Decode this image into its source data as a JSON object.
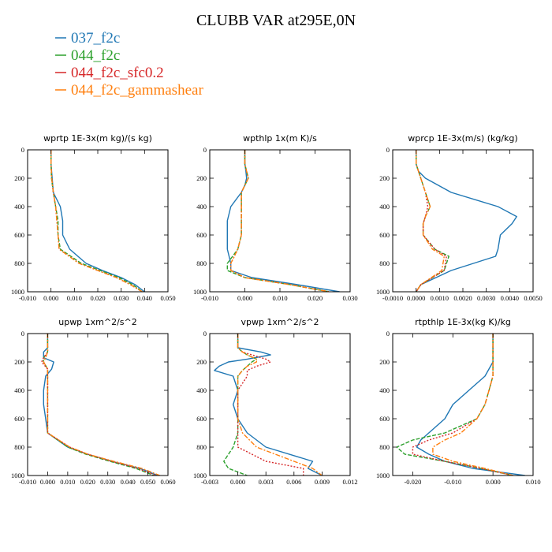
{
  "figure": {
    "title": "CLUBB VAR at295E,0N"
  },
  "legend": [
    {
      "name": "037_f2c",
      "color": "#1f77b4"
    },
    {
      "name": "044_f2c",
      "color": "#2ca02c"
    },
    {
      "name": "044_f2c_sfc0.2",
      "color": "#d62728"
    },
    {
      "name": "044_f2c_gammashear",
      "color": "#ff7f0e"
    }
  ],
  "chart_data": [
    {
      "type": "line",
      "title": "wprtp  1E-3x(m kg)/(s kg)",
      "xlim": [
        -0.01,
        0.05
      ],
      "xticks": [
        "-0.010",
        "0.000",
        "0.010",
        "0.020",
        "0.030",
        "0.040",
        "0.050"
      ],
      "xtick_values": [
        -0.01,
        0,
        0.01,
        0.02,
        0.03,
        0.04,
        0.05
      ],
      "ylim": [
        1000,
        0
      ],
      "yticks": [
        "0",
        "200",
        "400",
        "600",
        "800",
        "1000"
      ],
      "ytick_values": [
        0,
        200,
        400,
        600,
        800,
        1000
      ],
      "y": [
        0,
        100,
        200,
        300,
        400,
        500,
        600,
        700,
        800,
        850,
        900,
        950,
        1000
      ],
      "series": [
        {
          "name": "037_f2c",
          "values": [
            0,
            0,
            0.0005,
            0.001,
            0.004,
            0.005,
            0.005,
            0.008,
            0.015,
            0.022,
            0.03,
            0.036,
            0.04
          ]
        },
        {
          "name": "044_f2c",
          "values": [
            0,
            0,
            0.0002,
            0.001,
            0.002,
            0.003,
            0.003,
            0.004,
            0.013,
            0.021,
            0.029,
            0.035,
            0.039
          ]
        },
        {
          "name": "044_f2c_sfc0.2",
          "values": [
            0,
            0,
            0.0003,
            0.001,
            0.002,
            0.0025,
            0.003,
            0.0035,
            0.012,
            0.02,
            0.028,
            0.034,
            0.039
          ]
        },
        {
          "name": "044_f2c_gammashear",
          "values": [
            0,
            0,
            0.0003,
            0.001,
            0.002,
            0.0025,
            0.003,
            0.0035,
            0.012,
            0.02,
            0.028,
            0.034,
            0.039
          ]
        }
      ]
    },
    {
      "type": "line",
      "title": "wpthlp  1x(m K)/s",
      "xlim": [
        -0.01,
        0.03
      ],
      "xticks": [
        "-0.010",
        "0.000",
        "0.010",
        "0.020",
        "0.030"
      ],
      "xtick_values": [
        -0.01,
        0,
        0.01,
        0.02,
        0.03
      ],
      "ylim": [
        1000,
        0
      ],
      "yticks": [
        "0",
        "200",
        "400",
        "600",
        "800",
        "1000"
      ],
      "ytick_values": [
        0,
        200,
        400,
        600,
        800,
        1000
      ],
      "y": [
        0,
        100,
        150,
        200,
        250,
        300,
        400,
        500,
        600,
        700,
        800,
        850,
        900,
        950,
        1000
      ],
      "series": [
        {
          "name": "037_f2c",
          "values": [
            0,
            0,
            0.0003,
            0.0005,
            0,
            -0.001,
            -0.004,
            -0.005,
            -0.005,
            -0.005,
            -0.004,
            -0.004,
            0.002,
            0.015,
            0.027
          ]
        },
        {
          "name": "044_f2c",
          "values": [
            0,
            0,
            0.0005,
            0.001,
            0,
            -0.001,
            -0.001,
            -0.001,
            -0.001,
            -0.002,
            -0.005,
            -0.005,
            0,
            0.013,
            0.024
          ]
        },
        {
          "name": "044_f2c_sfc0.2",
          "values": [
            0,
            0,
            0.0005,
            0.001,
            0,
            -0.001,
            -0.001,
            -0.001,
            -0.001,
            -0.002,
            -0.004,
            -0.004,
            0,
            0.013,
            0.024
          ]
        },
        {
          "name": "044_f2c_gammashear",
          "values": [
            0,
            0,
            0.0005,
            0.001,
            0,
            -0.001,
            -0.001,
            -0.001,
            -0.001,
            -0.002,
            -0.004,
            -0.004,
            0,
            0.013,
            0.024
          ]
        }
      ]
    },
    {
      "type": "line",
      "title": "wprcp  1E-3x(m/s) (kg/kg)",
      "xlim": [
        -0.001,
        0.005
      ],
      "xticks": [
        "-0.0010",
        "0.0000",
        "0.0010",
        "0.0020",
        "0.0030",
        "0.0040",
        "0.0050"
      ],
      "xtick_values": [
        -0.001,
        0,
        0.001,
        0.002,
        0.003,
        0.004,
        0.005
      ],
      "ylim": [
        1000,
        0
      ],
      "yticks": [
        "0",
        "200",
        "400",
        "600",
        "800",
        "1000"
      ],
      "ytick_values": [
        0,
        200,
        400,
        600,
        800,
        1000
      ],
      "y": [
        0,
        100,
        150,
        200,
        300,
        400,
        470,
        520,
        600,
        700,
        750,
        850,
        950,
        1000
      ],
      "series": [
        {
          "name": "037_f2c",
          "values": [
            0,
            0,
            0.0001,
            0.0004,
            0.0015,
            0.0035,
            0.0043,
            0.0041,
            0.0036,
            0.0035,
            0.0034,
            0.0015,
            0.0002,
            0
          ]
        },
        {
          "name": "044_f2c",
          "values": [
            0,
            0,
            0.0001,
            0.0002,
            0.0004,
            0.0006,
            0.0004,
            0.0003,
            0.0003,
            0.0008,
            0.0014,
            0.0012,
            0.0002,
            0
          ]
        },
        {
          "name": "044_f2c_sfc0.2",
          "values": [
            0,
            0,
            0.0001,
            0.0002,
            0.0004,
            0.0005,
            0.0004,
            0.0003,
            0.0003,
            0.0008,
            0.0013,
            0.0012,
            0.0002,
            0
          ]
        },
        {
          "name": "044_f2c_gammashear",
          "values": [
            0,
            0,
            0.0001,
            0.0002,
            0.0004,
            0.0006,
            0.0004,
            0.0003,
            0.0003,
            0.0007,
            0.0012,
            0.0011,
            0.0002,
            0
          ]
        }
      ]
    },
    {
      "type": "line",
      "title": "upwp  1xm^2/s^2",
      "xlim": [
        -0.01,
        0.06
      ],
      "xticks": [
        "-0.010",
        "0.000",
        "0.010",
        "0.020",
        "0.030",
        "0.040",
        "0.050",
        "0.060"
      ],
      "xtick_values": [
        -0.01,
        0,
        0.01,
        0.02,
        0.03,
        0.04,
        0.05,
        0.06
      ],
      "ylim": [
        1000,
        0
      ],
      "yticks": [
        "0",
        "200",
        "400",
        "600",
        "800",
        "1000"
      ],
      "ytick_values": [
        0,
        200,
        400,
        600,
        800,
        1000
      ],
      "y": [
        0,
        100,
        130,
        170,
        200,
        250,
        300,
        400,
        500,
        600,
        700,
        800,
        850,
        900,
        950,
        1000
      ],
      "series": [
        {
          "name": "037_f2c",
          "values": [
            0,
            0,
            -0.002,
            -0.002,
            0.003,
            0.002,
            -0.001,
            -0.002,
            -0.002,
            -0.001,
            0,
            0.01,
            0.02,
            0.032,
            0.046,
            0.055
          ]
        },
        {
          "name": "044_f2c",
          "values": [
            0,
            0,
            0,
            -0.002,
            -0.002,
            0,
            0,
            0,
            0,
            0,
            0,
            0.01,
            0.019,
            0.031,
            0.044,
            0.053
          ]
        },
        {
          "name": "044_f2c_sfc0.2",
          "values": [
            0,
            0,
            0,
            -0.002,
            -0.003,
            0,
            0,
            0,
            0,
            0,
            0,
            0.011,
            0.02,
            0.032,
            0.045,
            0.054
          ]
        },
        {
          "name": "044_f2c_gammashear",
          "values": [
            0,
            0,
            0,
            -0.001,
            -0.002,
            0,
            0,
            0,
            0,
            0,
            0,
            0.011,
            0.02,
            0.033,
            0.047,
            0.056
          ]
        }
      ]
    },
    {
      "type": "line",
      "title": "vpwp  1xm^2/s^2",
      "xlim": [
        -0.003,
        0.012
      ],
      "xticks": [
        "-0.003",
        "0.000",
        "0.003",
        "0.006",
        "0.009",
        "0.012"
      ],
      "xtick_values": [
        -0.003,
        0,
        0.003,
        0.006,
        0.009,
        0.012
      ],
      "ylim": [
        1000,
        0
      ],
      "yticks": [
        "0",
        "200",
        "400",
        "600",
        "800",
        "1000"
      ],
      "ytick_values": [
        0,
        200,
        400,
        600,
        800,
        1000
      ],
      "y": [
        0,
        100,
        130,
        150,
        180,
        200,
        230,
        260,
        300,
        400,
        500,
        600,
        700,
        800,
        900,
        950,
        1000
      ],
      "series": [
        {
          "name": "037_f2c",
          "values": [
            0,
            0,
            0.0025,
            0.0035,
            0.001,
            -0.001,
            -0.002,
            -0.0025,
            -0.0005,
            0,
            -0.0005,
            0,
            0.001,
            0.003,
            0.008,
            0.0075,
            0.009
          ]
        },
        {
          "name": "044_f2c",
          "values": [
            0,
            0,
            0.0005,
            0.001,
            0.002,
            0.0015,
            0.001,
            0.0005,
            0,
            0,
            0,
            0,
            0,
            -0.0005,
            -0.0015,
            -0.001,
            0.001
          ]
        },
        {
          "name": "044_f2c_sfc0.2",
          "values": [
            0,
            0,
            0.0005,
            0.0015,
            0.003,
            0.0035,
            0.002,
            0.001,
            0.001,
            0,
            0,
            0,
            0,
            0,
            0.003,
            0.007,
            0.007
          ]
        },
        {
          "name": "044_f2c_gammashear",
          "values": [
            0,
            0,
            0.0005,
            0.001,
            0.002,
            0.002,
            0.001,
            0.0005,
            0,
            0,
            0,
            0,
            0.0005,
            0.002,
            0.006,
            0.008,
            0.009
          ]
        }
      ]
    },
    {
      "type": "line",
      "title": "rtpthlp  1E-3x(kg K)/kg",
      "xlim": [
        -0.025,
        0.01
      ],
      "xticks": [
        "-0.020",
        "-0.010",
        "0.000",
        "0.010"
      ],
      "xtick_values": [
        -0.02,
        -0.01,
        0,
        0.01
      ],
      "ylim": [
        1000,
        0
      ],
      "yticks": [
        "0",
        "200",
        "400",
        "600",
        "800",
        "1000"
      ],
      "ytick_values": [
        0,
        200,
        400,
        600,
        800,
        1000
      ],
      "y": [
        0,
        100,
        200,
        300,
        400,
        500,
        600,
        700,
        750,
        800,
        850,
        900,
        950,
        1000
      ],
      "series": [
        {
          "name": "037_f2c",
          "values": [
            0,
            0,
            0,
            -0.002,
            -0.006,
            -0.01,
            -0.012,
            -0.016,
            -0.018,
            -0.019,
            -0.016,
            -0.012,
            -0.005,
            0.008
          ]
        },
        {
          "name": "044_f2c",
          "values": [
            0,
            0,
            0,
            0,
            -0.001,
            -0.002,
            -0.004,
            -0.012,
            -0.02,
            -0.024,
            -0.022,
            -0.012,
            -0.003,
            0.005
          ]
        },
        {
          "name": "044_f2c_sfc0.2",
          "values": [
            0,
            0,
            0,
            0,
            -0.001,
            -0.002,
            -0.004,
            -0.01,
            -0.016,
            -0.02,
            -0.02,
            -0.012,
            -0.003,
            0.005
          ]
        },
        {
          "name": "044_f2c_gammashear",
          "values": [
            0,
            0,
            0,
            0,
            -0.001,
            -0.002,
            -0.004,
            -0.008,
            -0.012,
            -0.015,
            -0.015,
            -0.01,
            -0.002,
            0.005
          ]
        }
      ]
    }
  ]
}
